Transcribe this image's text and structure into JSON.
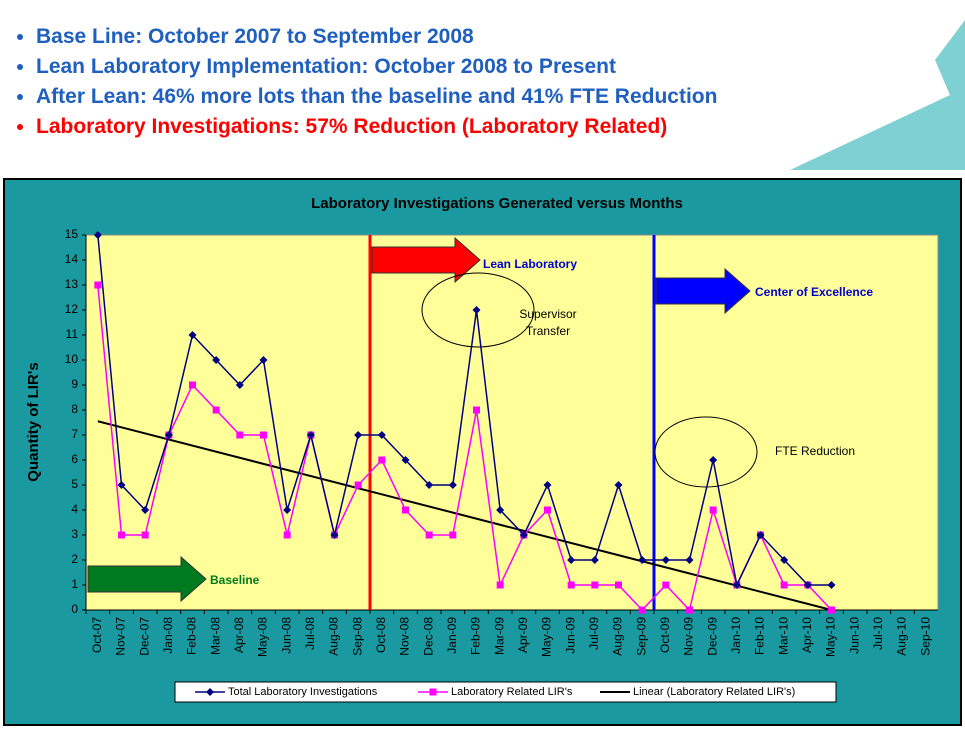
{
  "bullets": [
    {
      "text": "Base Line: October 2007 to September 2008",
      "color": "#1f5fbf"
    },
    {
      "text": "Lean Laboratory Implementation: October 2008 to Present",
      "color": "#1f5fbf"
    },
    {
      "text": "After Lean: 46% more lots than the baseline and 41% FTE Reduction",
      "color": "#1f5fbf"
    },
    {
      "text": "Laboratory Investigations: 57% Reduction (Laboratory Related)",
      "color": "#ff0000"
    }
  ],
  "chart_data": {
    "type": "line",
    "title": "Laboratory Investigations Generated versus Months",
    "y_label": "Quantity of LIR's",
    "categories": [
      "Oct-07",
      "Nov-07",
      "Dec-07",
      "Jan-08",
      "Feb-08",
      "Mar-08",
      "Apr-08",
      "May-08",
      "Jun-08",
      "Jul-08",
      "Aug-08",
      "Sep-08",
      "Oct-08",
      "Nov-08",
      "Dec-08",
      "Jan-09",
      "Feb-09",
      "Mar-09",
      "Apr-09",
      "May-09",
      "Jun-09",
      "Jul-09",
      "Aug-09",
      "Sep-09",
      "Oct-09",
      "Nov-09",
      "Dec-09",
      "Jan-10",
      "Feb-10",
      "Mar-10",
      "Apr-10",
      "May-10",
      "Jun-10",
      "Jul-10",
      "Aug-10",
      "Sep-10"
    ],
    "series": [
      {
        "name": "Total Laboratory Investigations",
        "color": "#000080",
        "marker": "diamond",
        "values": [
          15,
          5,
          4,
          7,
          11,
          10,
          9,
          10,
          4,
          7,
          3,
          7,
          7,
          6,
          5,
          5,
          12,
          4,
          3,
          5,
          2,
          2,
          5,
          2,
          2,
          2,
          6,
          1,
          3,
          2,
          1,
          1,
          null,
          null,
          null,
          null
        ]
      },
      {
        "name": "Laboratory Related LIR's",
        "color": "#ff00ff",
        "marker": "square",
        "values": [
          13,
          3,
          3,
          7,
          9,
          8,
          7,
          7,
          3,
          7,
          3,
          5,
          6,
          4,
          3,
          3,
          8,
          1,
          3,
          4,
          1,
          1,
          1,
          0,
          1,
          0,
          4,
          1,
          3,
          1,
          1,
          0,
          null,
          null,
          null,
          null
        ]
      }
    ],
    "trendline": {
      "name": "Linear (Laboratory Related LIR's)",
      "color": "#000000",
      "x": [
        "Oct-07",
        "May-10"
      ],
      "values": [
        7.55,
        0
      ]
    },
    "ylim": [
      0,
      15
    ],
    "yticks": [
      0,
      1,
      2,
      3,
      4,
      5,
      6,
      7,
      8,
      9,
      10,
      11,
      12,
      13,
      14,
      15
    ],
    "annotations": {
      "lean": "Lean Laboratory",
      "coe": "Center of Excellence",
      "baseline": "Baseline",
      "supervisor": [
        "Supervisor",
        "Transfer"
      ],
      "fte": "FTE Reduction"
    }
  }
}
